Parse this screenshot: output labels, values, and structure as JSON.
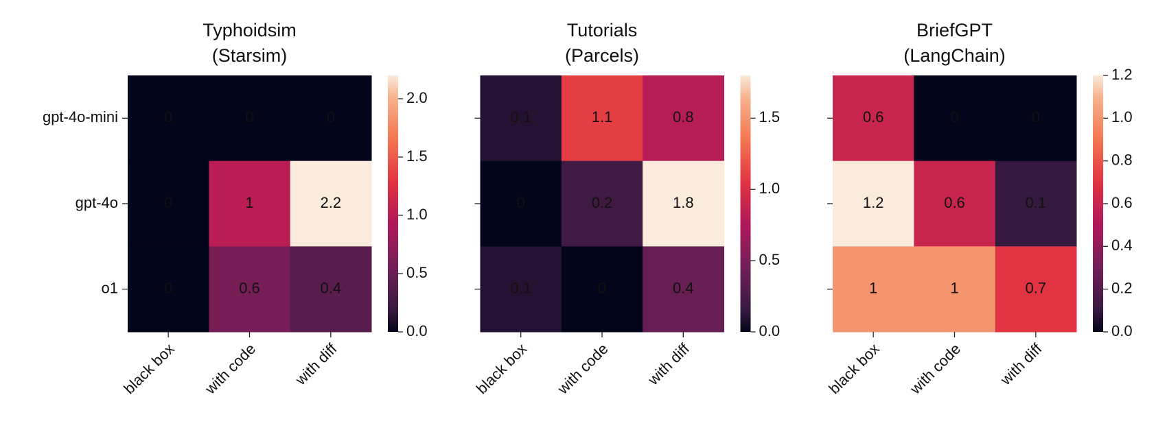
{
  "chart_data": [
    {
      "type": "heatmap",
      "title": "Typhoidsim",
      "subtitle": "(Starsim)",
      "x_categories": [
        "black box",
        "with code",
        "with diff"
      ],
      "y_categories": [
        "gpt-4o-mini",
        "gpt-4o",
        "o1"
      ],
      "values": [
        [
          0,
          0,
          0
        ],
        [
          0,
          1,
          2.2
        ],
        [
          0,
          0.6,
          0.4
        ]
      ],
      "colormap": "rocket",
      "clim": [
        0,
        2.2
      ],
      "cticks": [
        {
          "value": 0,
          "label": "0.0"
        },
        {
          "value": 0.5,
          "label": "0.5"
        },
        {
          "value": 1,
          "label": "1.0"
        },
        {
          "value": 1.5,
          "label": "1.5"
        },
        {
          "value": 2,
          "label": "2.0"
        }
      ]
    },
    {
      "type": "heatmap",
      "title": "Tutorials",
      "subtitle": "(Parcels)",
      "x_categories": [
        "black box",
        "with code",
        "with diff"
      ],
      "values": [
        [
          0.1,
          1.1,
          0.8
        ],
        [
          0,
          0.2,
          1.8
        ],
        [
          0.1,
          0,
          0.4
        ]
      ],
      "colormap": "rocket",
      "clim": [
        0,
        1.8
      ],
      "cticks": [
        {
          "value": 0,
          "label": "0.0"
        },
        {
          "value": 0.5,
          "label": "0.5"
        },
        {
          "value": 1,
          "label": "1.0"
        },
        {
          "value": 1.5,
          "label": "1.5"
        }
      ]
    },
    {
      "type": "heatmap",
      "title": "BriefGPT",
      "subtitle": "(LangChain)",
      "x_categories": [
        "black box",
        "with code",
        "with diff"
      ],
      "values": [
        [
          0.6,
          0,
          0
        ],
        [
          1.2,
          0.6,
          0.1
        ],
        [
          1,
          1,
          0.7
        ]
      ],
      "colormap": "rocket",
      "clim": [
        0,
        1.2
      ],
      "cticks": [
        {
          "value": 0,
          "label": "0.0"
        },
        {
          "value": 0.2,
          "label": "0.2"
        },
        {
          "value": 0.4,
          "label": "0.4"
        },
        {
          "value": 0.6,
          "label": "0.6"
        },
        {
          "value": 0.8,
          "label": "0.8"
        },
        {
          "value": 1,
          "label": "1.0"
        },
        {
          "value": 1.2,
          "label": "1.2"
        }
      ]
    }
  ]
}
